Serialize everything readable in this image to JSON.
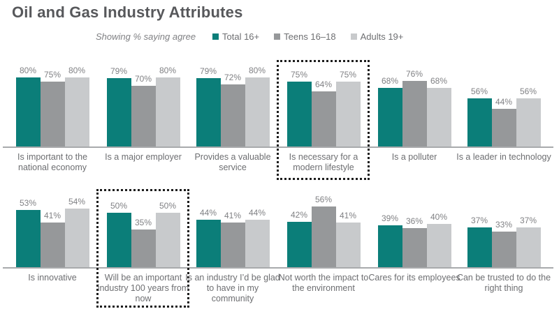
{
  "title": "Oil and Gas Industry Attributes",
  "legend": {
    "note": "Showing % saying agree",
    "series": [
      {
        "name": "Total 16+",
        "color": "#0B7E79"
      },
      {
        "name": "Teens 16–18",
        "color": "#96989A"
      },
      {
        "name": "Adults 19+",
        "color": "#C8CACC"
      }
    ]
  },
  "colors": {
    "accent_teal": "#0B7E79",
    "mid_gray": "#96989A",
    "light_gray": "#C8CACC",
    "title_text": "#57585B",
    "label_text": "#6D6E71",
    "value_text": "#808184",
    "axis_line": "#A8AAAC",
    "highlight_border": "#1C1C1C"
  },
  "chart_data": {
    "type": "bar",
    "title": "Oil and Gas Industry Attributes",
    "subtitle": "Showing % saying agree",
    "value_suffix": "%",
    "ylim": [
      0,
      100
    ],
    "grid": false,
    "legend_position": "top",
    "series_names": [
      "Total 16+",
      "Teens 16–18",
      "Adults 19+"
    ],
    "rows": [
      {
        "groups": [
          {
            "label": "Is important to the national economy",
            "values": [
              80,
              75,
              80
            ],
            "highlighted": false
          },
          {
            "label": "Is a major employer",
            "values": [
              79,
              70,
              80
            ],
            "highlighted": false
          },
          {
            "label": "Provides a valuable service",
            "values": [
              79,
              72,
              80
            ],
            "highlighted": false
          },
          {
            "label": "Is necessary for a modern lifestyle",
            "values": [
              75,
              64,
              75
            ],
            "highlighted": true
          },
          {
            "label": "Is a polluter",
            "values": [
              68,
              76,
              68
            ],
            "highlighted": false
          },
          {
            "label": "Is a leader in technology",
            "values": [
              56,
              44,
              56
            ],
            "highlighted": false
          }
        ]
      },
      {
        "groups": [
          {
            "label": "Is innovative",
            "values": [
              53,
              41,
              54
            ],
            "highlighted": false
          },
          {
            "label": "Will be an important industry 100 years from now",
            "values": [
              50,
              35,
              50
            ],
            "highlighted": true
          },
          {
            "label": "Is an industry I’d be glad to have in my community",
            "values": [
              44,
              41,
              44
            ],
            "highlighted": false
          },
          {
            "label": "Not worth the impact to the environment",
            "values": [
              42,
              56,
              41
            ],
            "highlighted": false
          },
          {
            "label": "Cares for its employees",
            "values": [
              39,
              36,
              40
            ],
            "highlighted": false
          },
          {
            "label": "Can be trusted to do the right thing",
            "values": [
              37,
              33,
              37
            ],
            "highlighted": false
          }
        ]
      }
    ]
  }
}
